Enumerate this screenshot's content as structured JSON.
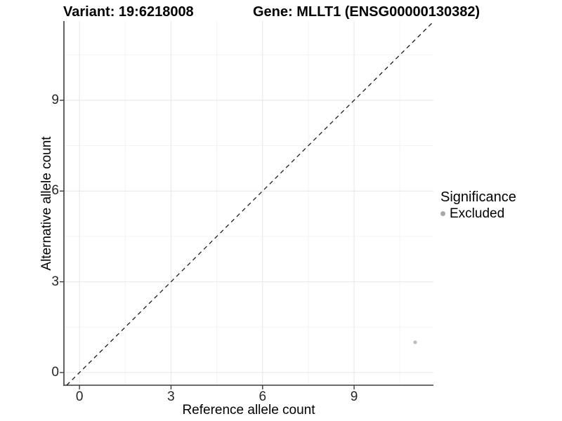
{
  "chart_data": {
    "type": "scatter",
    "title_left": "Variant: 19:6218008",
    "title_right": "Gene: MLLT1 (ENSG00000130382)",
    "xlabel": "Reference allele count",
    "ylabel": "Alternative allele count",
    "xlim": [
      -0.51,
      11.6
    ],
    "ylim": [
      -0.42,
      11.62
    ],
    "x_ticks": [
      0,
      3,
      6,
      9
    ],
    "y_ticks": [
      0,
      3,
      6,
      9
    ],
    "x_minor_ticks": [
      1.5,
      4.5,
      7.5,
      10.5
    ],
    "y_minor_ticks": [
      1.5,
      4.5,
      7.5,
      10.5
    ],
    "grid": "major+minor",
    "abline": {
      "slope": 1,
      "intercept": 0,
      "style": "dashed",
      "color": "#1a1a1a"
    },
    "series": [
      {
        "name": "Excluded",
        "color": "#bdbdbd",
        "points": [
          {
            "x": 11,
            "y": 1
          }
        ]
      }
    ],
    "legend": {
      "position": "right",
      "title": "Significance",
      "items": [
        {
          "label": "Excluded",
          "color": "#a9a9a9"
        }
      ]
    },
    "colors": {
      "grid_major": "#e6e6e6",
      "grid_minor": "#f3f3f3",
      "axis": "#3c3c3c",
      "tick_label": "#262626",
      "background": "#ffffff"
    }
  }
}
